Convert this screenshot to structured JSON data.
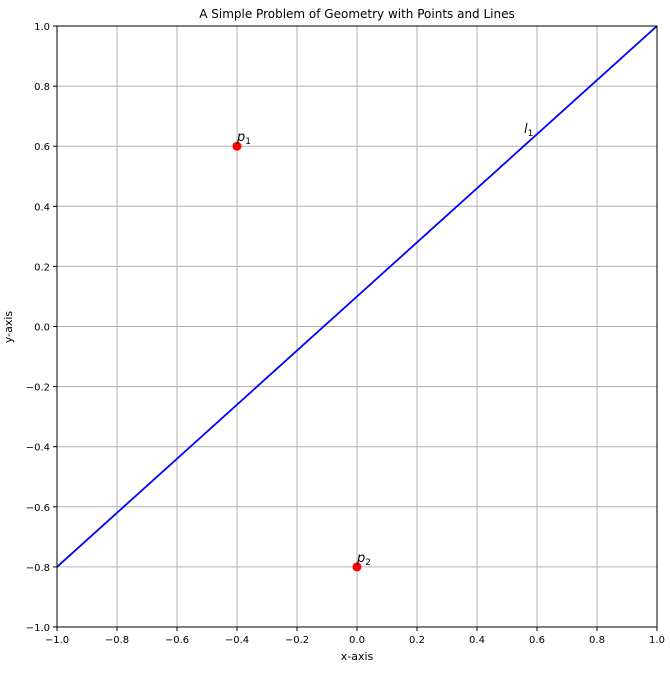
{
  "chart_data": {
    "type": "line",
    "title": "A Simple Problem of Geometry with Points and Lines",
    "xlabel": "x-axis",
    "ylabel": "y-axis",
    "xlim": [
      -1.0,
      1.0
    ],
    "ylim": [
      -1.0,
      1.0
    ],
    "grid": true,
    "xticks": [
      "−1.0",
      "−0.8",
      "−0.6",
      "−0.4",
      "−0.2",
      "0.0",
      "0.2",
      "0.4",
      "0.6",
      "0.8",
      "1.0"
    ],
    "yticks": [
      "−1.0",
      "−0.8",
      "−0.6",
      "−0.4",
      "−0.2",
      "0.0",
      "0.2",
      "0.4",
      "0.6",
      "0.8",
      "1.0"
    ],
    "xtick_values": [
      -1.0,
      -0.8,
      -0.6,
      -0.4,
      -0.2,
      0.0,
      0.2,
      0.4,
      0.6,
      0.8,
      1.0
    ],
    "ytick_values": [
      -1.0,
      -0.8,
      -0.6,
      -0.4,
      -0.2,
      0.0,
      0.2,
      0.4,
      0.6,
      0.8,
      1.0
    ],
    "lines": [
      {
        "label": "l",
        "subscript": "1",
        "x": [
          -1.0,
          1.0
        ],
        "y": [
          -0.8,
          1.0
        ],
        "color": "#0000ff",
        "label_at": [
          0.57,
          0.65
        ]
      }
    ],
    "points": [
      {
        "label": "p",
        "subscript": "1",
        "x": -0.4,
        "y": 0.6,
        "color": "#ff0000"
      },
      {
        "label": "p",
        "subscript": "2",
        "x": 0.0,
        "y": -0.8,
        "color": "#ff0000"
      }
    ]
  }
}
